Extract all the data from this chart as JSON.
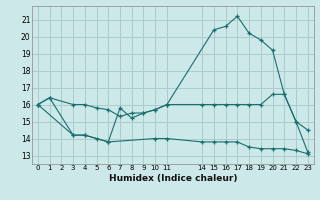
{
  "xlabel": "Humidex (Indice chaleur)",
  "xlim": [
    -0.5,
    23.5
  ],
  "ylim": [
    12.5,
    21.8
  ],
  "yticks": [
    13,
    14,
    15,
    16,
    17,
    18,
    19,
    20,
    21
  ],
  "xtick_positions": [
    0,
    1,
    2,
    3,
    4,
    5,
    6,
    7,
    8,
    9,
    10,
    11,
    14,
    15,
    16,
    17,
    18,
    19,
    20,
    21,
    22,
    23
  ],
  "xtick_labels": [
    "0",
    "1",
    "2",
    "3",
    "4",
    "5",
    "6",
    "7",
    "8",
    "9",
    "10",
    "11",
    "14",
    "15",
    "16",
    "17",
    "18",
    "19",
    "20",
    "21",
    "22",
    "23"
  ],
  "background_color": "#cce8e8",
  "grid_color": "#aacccc",
  "line_color": "#1a6e6e",
  "line1_x": [
    0,
    1,
    3,
    4,
    5,
    6,
    7,
    8,
    9,
    10,
    11,
    15,
    16,
    17,
    18,
    19,
    20,
    21,
    22,
    23
  ],
  "line1_y": [
    16.0,
    16.4,
    16.0,
    16.0,
    15.8,
    15.7,
    15.3,
    15.5,
    15.5,
    15.7,
    16.0,
    20.4,
    20.6,
    21.2,
    20.2,
    19.8,
    19.2,
    16.6,
    15.0,
    14.5
  ],
  "line2_x": [
    0,
    1,
    3,
    4,
    5,
    6,
    7,
    8,
    9,
    10,
    11,
    14,
    15,
    16,
    17,
    18,
    19,
    20,
    21,
    22,
    23
  ],
  "line2_y": [
    16.0,
    16.4,
    14.2,
    14.2,
    14.0,
    13.8,
    15.8,
    15.2,
    15.5,
    15.7,
    16.0,
    16.0,
    16.0,
    16.0,
    16.0,
    16.0,
    16.0,
    16.6,
    16.6,
    15.0,
    13.2
  ],
  "line3_x": [
    0,
    3,
    4,
    6,
    10,
    11,
    14,
    15,
    16,
    17,
    18,
    19,
    20,
    21,
    22,
    23
  ],
  "line3_y": [
    16.0,
    14.2,
    14.2,
    13.8,
    14.0,
    14.0,
    13.8,
    13.8,
    13.8,
    13.8,
    13.5,
    13.4,
    13.4,
    13.4,
    13.3,
    13.1
  ]
}
